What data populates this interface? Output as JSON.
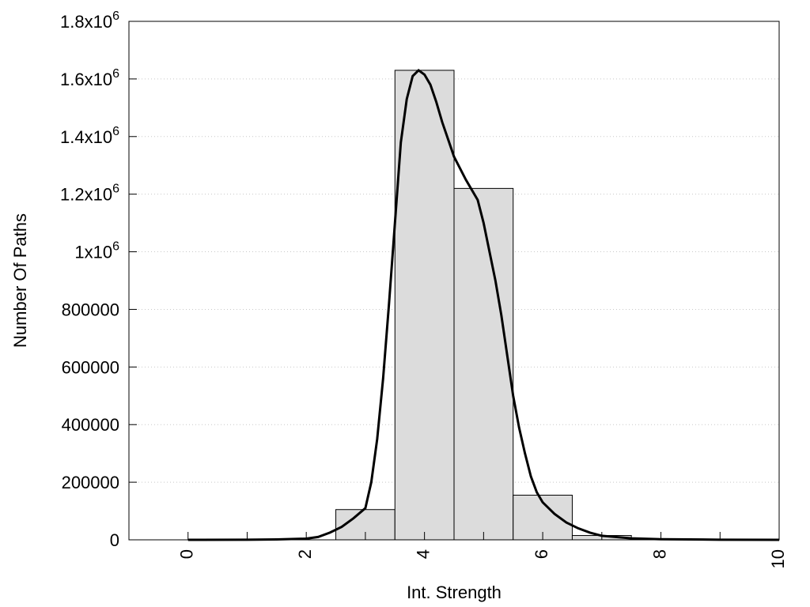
{
  "chart_data": {
    "type": "bar",
    "title": "",
    "xlabel": "Int. Strength",
    "ylabel": "Number Of Paths",
    "xlim": [
      -1,
      10
    ],
    "ylim": [
      0,
      1800000
    ],
    "grid": "horizontal-dotted",
    "legend": "none",
    "x_ticks": [
      {
        "value": 0,
        "label": "0"
      },
      {
        "value": 2,
        "label": "2"
      },
      {
        "value": 4,
        "label": "4"
      },
      {
        "value": 6,
        "label": "6"
      },
      {
        "value": 8,
        "label": "8"
      },
      {
        "value": 10,
        "label": "10"
      }
    ],
    "y_ticks": [
      {
        "value": 0,
        "label": "0",
        "sup": ""
      },
      {
        "value": 200000,
        "label": "200000",
        "sup": ""
      },
      {
        "value": 400000,
        "label": "400000",
        "sup": ""
      },
      {
        "value": 600000,
        "label": "600000",
        "sup": ""
      },
      {
        "value": 800000,
        "label": "800000",
        "sup": ""
      },
      {
        "value": 1000000,
        "label": "1x10",
        "sup": "6"
      },
      {
        "value": 1200000,
        "label": "1.2x10",
        "sup": "6"
      },
      {
        "value": 1400000,
        "label": "1.4x10",
        "sup": "6"
      },
      {
        "value": 1600000,
        "label": "1.6x10",
        "sup": "6"
      },
      {
        "value": 1800000,
        "label": "1.8x10",
        "sup": "6"
      }
    ],
    "bars": [
      {
        "x": 3,
        "value": 105000
      },
      {
        "x": 4,
        "value": 1630000
      },
      {
        "x": 5,
        "value": 1220000
      },
      {
        "x": 6,
        "value": 155000
      },
      {
        "x": 7,
        "value": 15000
      }
    ],
    "bar_width": 1,
    "curve": {
      "x": [
        0,
        1,
        1.5,
        2,
        2.2,
        2.4,
        2.6,
        2.8,
        3.0,
        3.1,
        3.2,
        3.3,
        3.4,
        3.5,
        3.6,
        3.7,
        3.8,
        3.9,
        4.0,
        4.1,
        4.2,
        4.3,
        4.4,
        4.5,
        4.7,
        4.9,
        5.0,
        5.1,
        5.2,
        5.3,
        5.4,
        5.5,
        5.6,
        5.7,
        5.8,
        5.9,
        6.0,
        6.2,
        6.4,
        6.6,
        6.8,
        7.0,
        7.5,
        8.0,
        9.0,
        10.0
      ],
      "y": [
        0,
        500,
        1500,
        4000,
        10000,
        25000,
        45000,
        75000,
        110000,
        200000,
        350000,
        560000,
        820000,
        1100000,
        1380000,
        1530000,
        1610000,
        1630000,
        1615000,
        1580000,
        1520000,
        1450000,
        1390000,
        1330000,
        1250000,
        1180000,
        1100000,
        1000000,
        900000,
        780000,
        640000,
        500000,
        390000,
        300000,
        220000,
        165000,
        130000,
        90000,
        60000,
        40000,
        25000,
        14000,
        5000,
        2000,
        500,
        0
      ],
      "color": "#000000"
    },
    "bar_fill": "#dcdcdc",
    "bar_stroke": "#000000"
  }
}
